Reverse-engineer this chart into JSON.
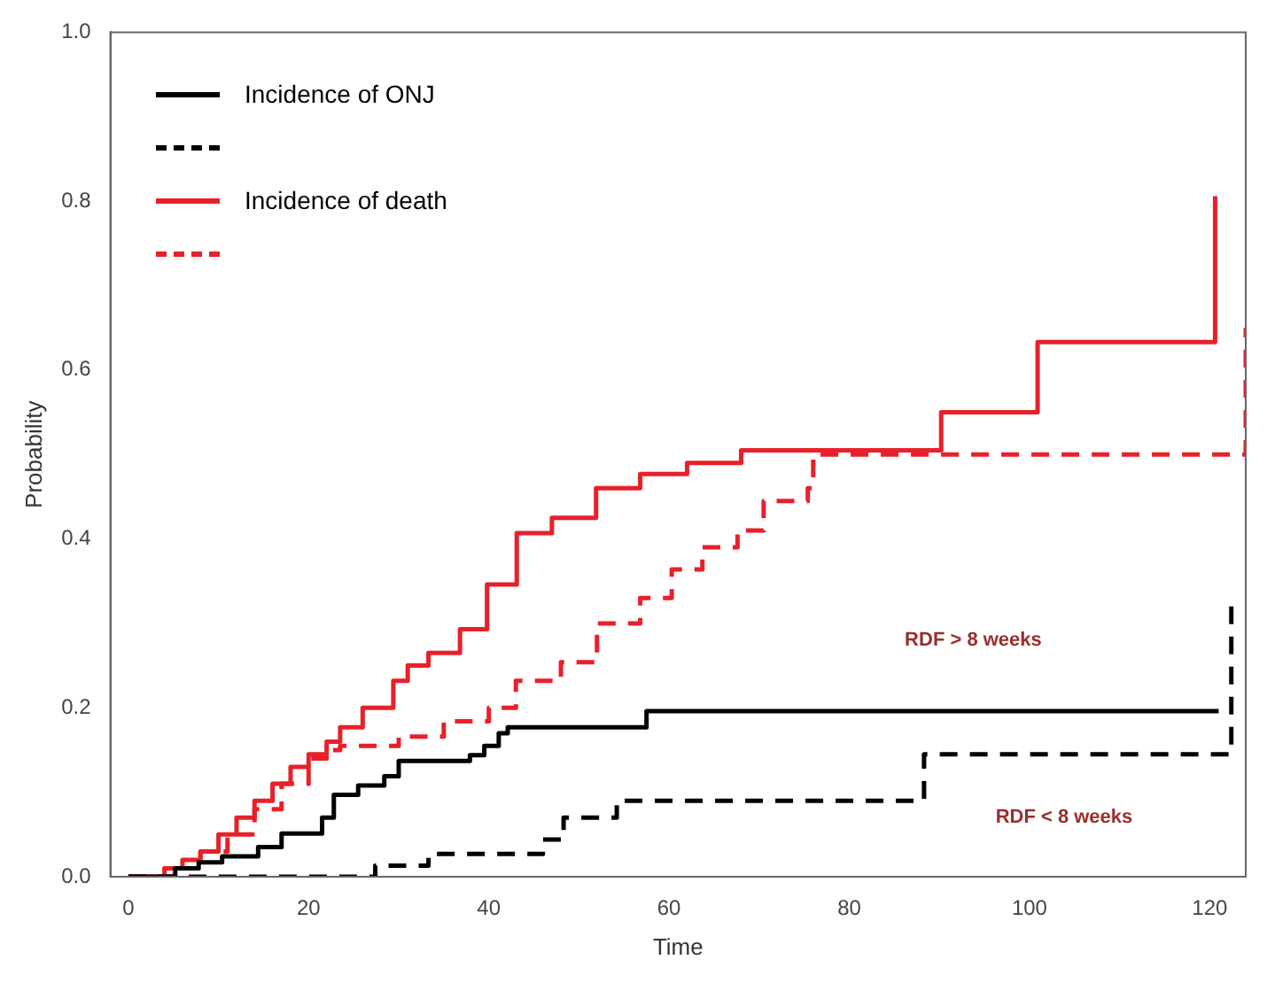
{
  "chart_data": {
    "type": "step",
    "xlabel": "Time",
    "ylabel": "Probability",
    "xlim": [
      -2,
      124
    ],
    "ylim": [
      0,
      1
    ],
    "xticks": [
      0,
      20,
      40,
      60,
      80,
      100,
      120
    ],
    "yticks": [
      {
        "value": 0,
        "label": "0.0"
      },
      {
        "value": 0.2,
        "label": "0.2"
      },
      {
        "value": 0.4,
        "label": "0.4"
      },
      {
        "value": 0.6,
        "label": "0.6"
      },
      {
        "value": 0.8,
        "label": "0.8"
      },
      {
        "value": 1,
        "label": "1.0"
      }
    ],
    "grid": false,
    "legend": "top left",
    "marker": "none",
    "series": [
      {
        "name": "Incidence of ONJ",
        "color": "#000000",
        "line_style": "solid",
        "x": [
          0,
          5.2,
          7.8,
          10.4,
          14.4,
          17,
          21.5,
          22.8,
          25.5,
          28.4,
          30,
          37.9,
          39.5,
          41.1,
          42.1,
          57.5,
          121
        ],
        "values": [
          0,
          0.01,
          0.017,
          0.024,
          0.035,
          0.051,
          0.07,
          0.097,
          0.108,
          0.119,
          0.137,
          0.144,
          0.155,
          0.17,
          0.177,
          0.196,
          0.196
        ]
      },
      {
        "color": "#000000",
        "line_style": "dashed",
        "x": [
          0,
          27.4,
          33.3,
          46,
          48.3,
          54.2,
          88.3,
          122.4
        ],
        "values": [
          0,
          0.013,
          0.027,
          0.044,
          0.07,
          0.09,
          0.145,
          0.32
        ]
      },
      {
        "name": "Incidence of death",
        "color": "#e8202a",
        "line_style": "solid",
        "x": [
          0,
          4,
          6,
          8,
          10,
          12,
          14,
          16,
          18,
          20,
          22,
          23.5,
          26,
          29.4,
          31,
          33.3,
          36.8,
          39.8,
          43.1,
          47,
          51.9,
          56.8,
          62,
          68,
          90.2,
          100.9,
          120.6
        ],
        "values": [
          0,
          0.01,
          0.02,
          0.03,
          0.05,
          0.07,
          0.09,
          0.11,
          0.13,
          0.145,
          0.16,
          0.177,
          0.2,
          0.232,
          0.25,
          0.265,
          0.293,
          0.346,
          0.407,
          0.425,
          0.46,
          0.477,
          0.49,
          0.505,
          0.55,
          0.633,
          0.806
        ]
      },
      {
        "color": "#e8202a",
        "line_style": "dashed",
        "x": [
          0,
          5,
          8,
          11,
          14,
          17,
          20,
          22,
          23.5,
          30,
          35,
          40,
          43,
          48,
          52,
          56.8,
          60.3,
          63.7,
          67.6,
          70.5,
          75.4,
          76,
          124
        ],
        "values": [
          0,
          0.01,
          0.03,
          0.05,
          0.08,
          0.11,
          0.14,
          0.15,
          0.155,
          0.166,
          0.184,
          0.2,
          0.232,
          0.254,
          0.3,
          0.33,
          0.364,
          0.39,
          0.41,
          0.445,
          0.46,
          0.5,
          0.65
        ]
      }
    ],
    "annotations": [
      "RDF > 8 weeks",
      "RDF < 8 weeks"
    ]
  }
}
